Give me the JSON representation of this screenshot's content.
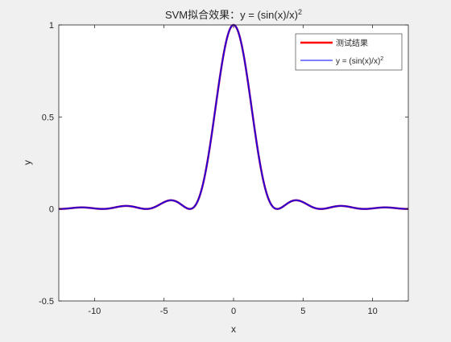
{
  "chart_data": {
    "type": "line",
    "title": "SVM拟合效果：y = (sin(x)/x)",
    "title_superscript": "2",
    "xlabel": "x",
    "ylabel": "y",
    "xlim": [
      -12.57,
      12.57
    ],
    "ylim": [
      -0.5,
      1
    ],
    "xticks": [
      -10,
      -5,
      0,
      5,
      10
    ],
    "yticks": [
      -0.5,
      0,
      0.5,
      1
    ],
    "xtick_labels": [
      "-10",
      "-5",
      "0",
      "5",
      "10"
    ],
    "ytick_labels": [
      "-0.5",
      "0",
      "0.5",
      "1"
    ],
    "grid": false,
    "legend_position": "top-right",
    "function": "y = (sin(x)/x)^2",
    "series": [
      {
        "name": "测试结果",
        "color": "#ff0000",
        "line_width": 2.5
      },
      {
        "name": "y = (sin(x)/x)",
        "name_superscript": "2",
        "color": "#0000ff",
        "line_width": 1
      }
    ],
    "overlap_color": "#800080"
  }
}
